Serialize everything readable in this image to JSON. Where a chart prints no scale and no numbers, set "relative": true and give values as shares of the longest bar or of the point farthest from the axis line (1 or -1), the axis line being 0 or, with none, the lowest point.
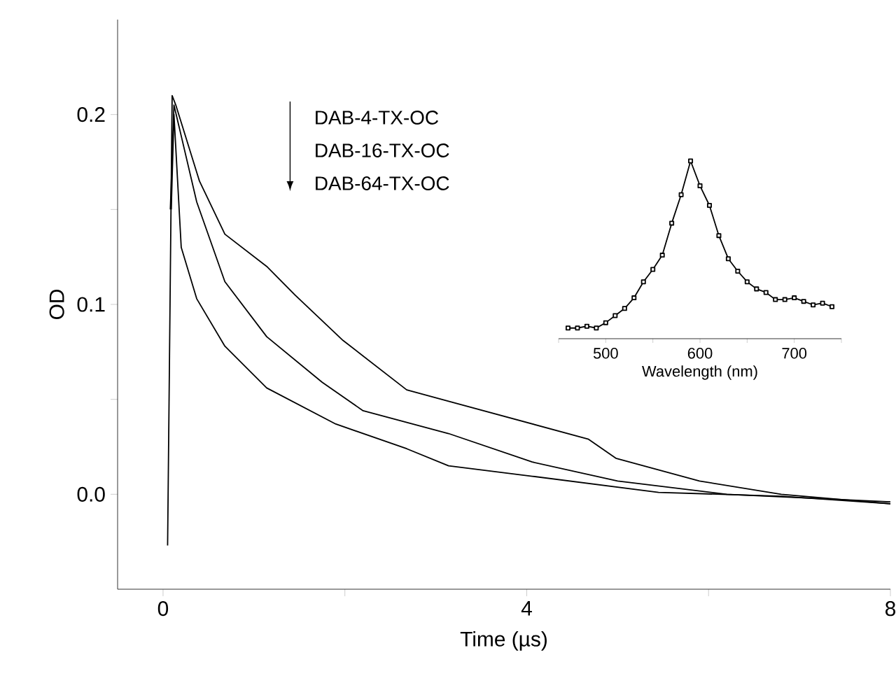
{
  "chart_data": [
    {
      "type": "line",
      "xlabel": "Time (µs)",
      "ylabel": "OD",
      "xlim": [
        -0.5,
        8
      ],
      "ylim": [
        -0.05,
        0.25
      ],
      "xticks": [
        0,
        {
          "value": 2,
          "label": null
        },
        4,
        {
          "value": 6,
          "label": null
        },
        8
      ],
      "yticks": [
        {
          "value": 0,
          "label": "0.0"
        },
        {
          "value": 0.05,
          "label": null
        },
        0.1,
        {
          "value": 0.15,
          "label": null
        },
        0.2
      ],
      "annotations": [
        "DAB-4-TX-OC",
        "DAB-16-TX-OC",
        "DAB-64-TX-OC"
      ],
      "series": [
        {
          "color": "#000000",
          "x": [
            0.05,
            0.1,
            0.14,
            0.4,
            0.68,
            1.14,
            1.45,
            1.98,
            2.68,
            3.14,
            4.68,
            4.98,
            5.9,
            6.8,
            8
          ],
          "values": [
            -0.027,
            0.21,
            0.205,
            0.165,
            0.137,
            0.12,
            0.105,
            0.081,
            0.055,
            0.049,
            0.029,
            0.019,
            0.007,
            0.0,
            -0.005
          ]
        },
        {
          "color": "#000000",
          "x": [
            0.08,
            0.12,
            0.37,
            0.68,
            1.14,
            1.75,
            2.2,
            3.14,
            4.06,
            5.0,
            6.2,
            8
          ],
          "values": [
            0.15,
            0.205,
            0.154,
            0.112,
            0.083,
            0.059,
            0.044,
            0.032,
            0.017,
            0.007,
            0.0,
            -0.004
          ]
        },
        {
          "color": "#000000",
          "x": [
            0.09,
            0.12,
            0.2,
            0.37,
            0.68,
            1.14,
            1.9,
            2.68,
            3.14,
            4.06,
            5.45,
            6.8,
            8
          ],
          "values": [
            0.15,
            0.2,
            0.13,
            0.103,
            0.078,
            0.056,
            0.037,
            0.024,
            0.015,
            0.0095,
            0.001,
            -0.001,
            -0.005
          ]
        }
      ]
    },
    {
      "type": "line",
      "relative": true,
      "xlabel": "Wavelength (nm)",
      "xlim": [
        450,
        750
      ],
      "xticks": [
        {
          "value": 450,
          "label": null
        },
        500,
        {
          "value": 550,
          "label": null
        },
        600,
        {
          "value": 650,
          "label": null
        },
        700,
        {
          "value": 750,
          "label": null
        }
      ],
      "marker": "square",
      "color": "#000000",
      "x": [
        460,
        470,
        480,
        490,
        500,
        510,
        520,
        530,
        540,
        550,
        560,
        570,
        580,
        590,
        600,
        610,
        620,
        630,
        640,
        650,
        660,
        670,
        680,
        690,
        700,
        710,
        720,
        730,
        740
      ],
      "values": [
        0.06,
        0.06,
        0.07,
        0.06,
        0.09,
        0.13,
        0.17,
        0.23,
        0.32,
        0.39,
        0.47,
        0.65,
        0.81,
        1.0,
        0.86,
        0.75,
        0.58,
        0.45,
        0.38,
        0.32,
        0.28,
        0.26,
        0.22,
        0.22,
        0.23,
        0.21,
        0.19,
        0.2,
        0.18
      ]
    }
  ]
}
